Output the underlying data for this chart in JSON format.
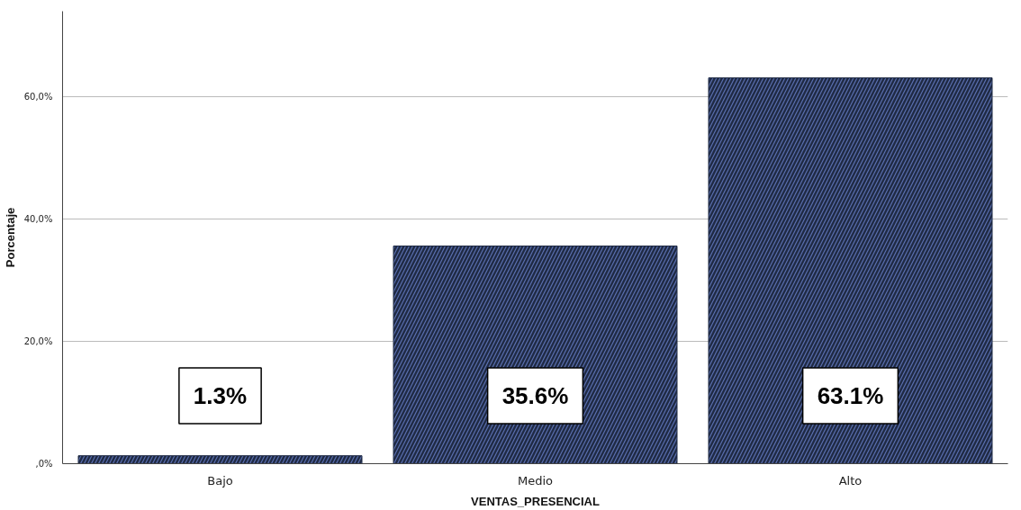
{
  "chart_data": {
    "type": "bar",
    "xlabel": "VENTAS_PRESENCIAL",
    "ylabel": "Porcentaje",
    "categories": [
      "Bajo",
      "Medio",
      "Alto"
    ],
    "values": [
      1.3,
      35.6,
      63.1
    ],
    "value_labels": [
      "1.3%",
      "35.6%",
      "63.1%"
    ],
    "color": "#1f2a44",
    "ylim": [
      0,
      74
    ],
    "yticks": [
      {
        "value": 0,
        "label": ",0%"
      },
      {
        "value": 20,
        "label": "20,0%"
      },
      {
        "value": 40,
        "label": "40,0%"
      },
      {
        "value": 60,
        "label": "60,0%"
      }
    ],
    "grid": "y"
  }
}
